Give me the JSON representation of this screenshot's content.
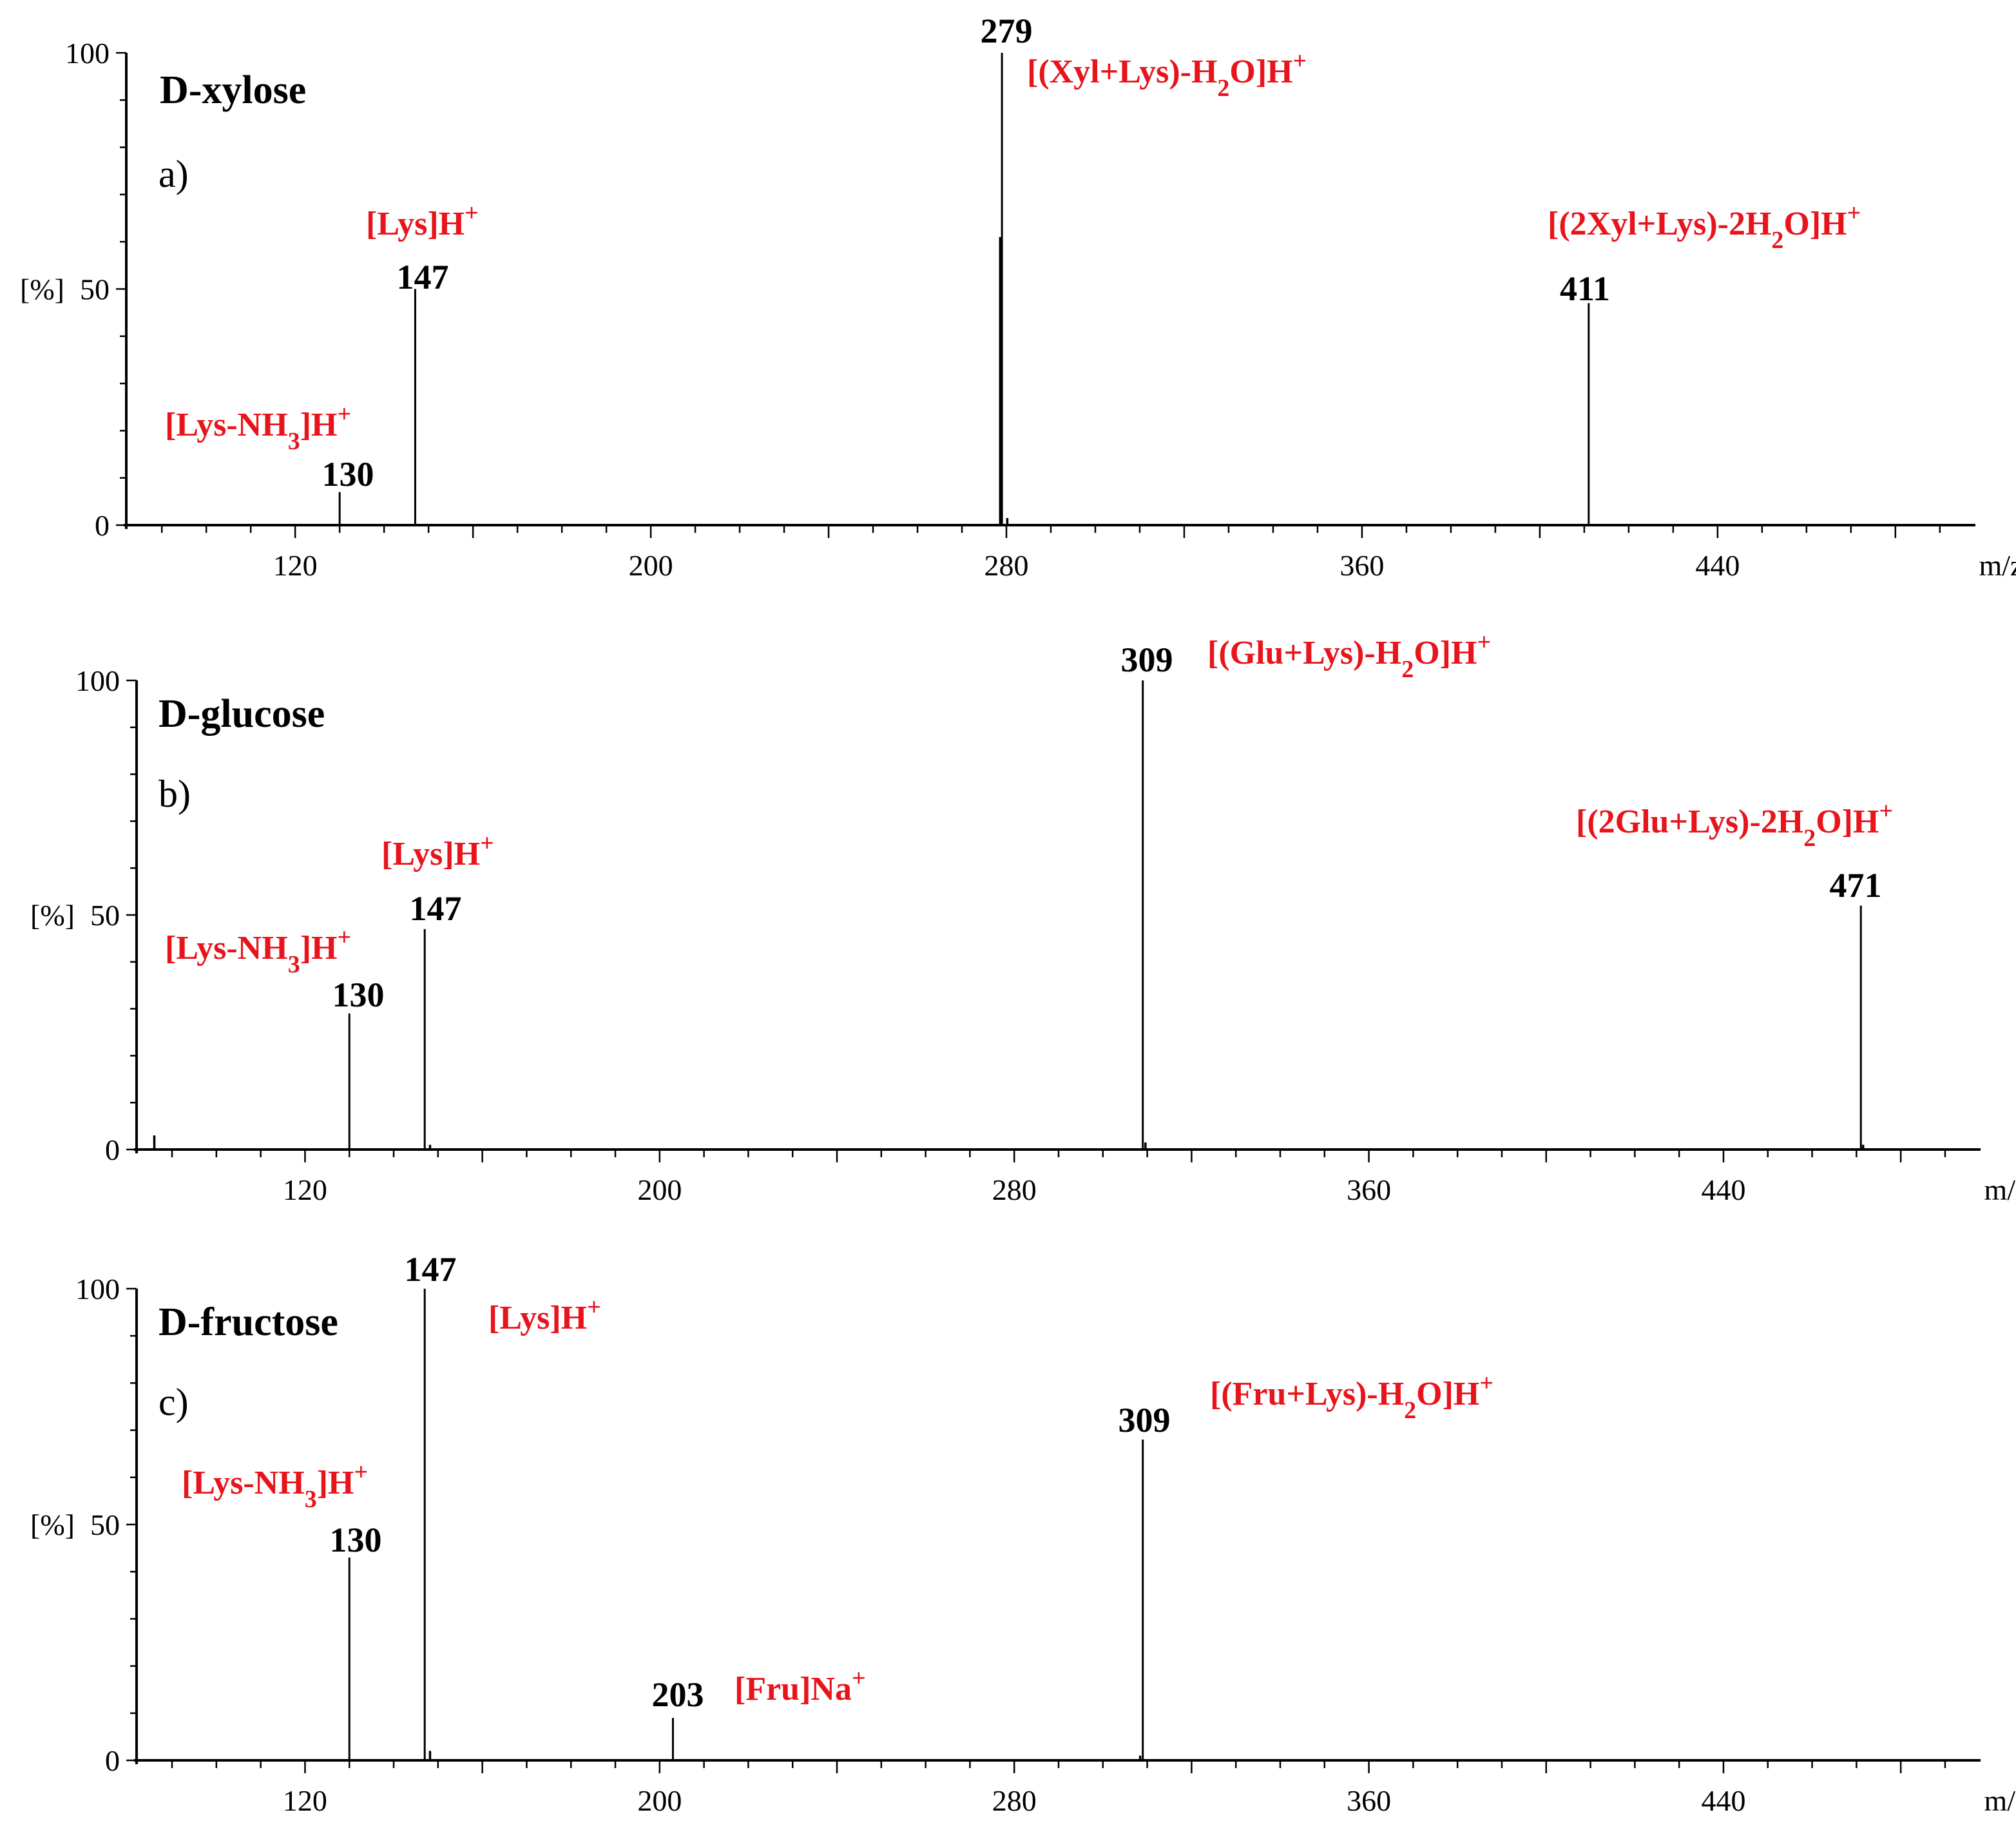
{
  "colors": {
    "axis": "#000000",
    "peak": "#000000",
    "annotation": "#e8141c"
  },
  "chart_data": [
    {
      "type": "bar",
      "title": "D-xylose",
      "panel_label": "a)",
      "xlabel": "m/z",
      "ylabel": "[%]",
      "xlim": [
        82,
        498
      ],
      "ylim": [
        0,
        100
      ],
      "xticks": [
        120,
        200,
        280,
        360,
        440
      ],
      "yticks": [
        0,
        50,
        100
      ],
      "peaks": [
        {
          "mz": 130,
          "intensity": 7,
          "label": "130",
          "ion": "[Lys-NH3]H+"
        },
        {
          "mz": 147,
          "intensity": 50,
          "label": "147",
          "ion": "[Lys]H+"
        },
        {
          "mz": 279,
          "intensity": 100,
          "label": "279",
          "ion": "[(Xyl+Lys)-H2O]H+"
        },
        {
          "mz": 278.6,
          "intensity": 61
        },
        {
          "mz": 280.2,
          "intensity": 1.5
        },
        {
          "mz": 411,
          "intensity": 47,
          "label": "411",
          "ion": "[(2Xyl+Lys)-2H2O]H+"
        }
      ]
    },
    {
      "type": "bar",
      "title": "D-glucose",
      "panel_label": "b)",
      "xlabel": "m/z",
      "ylabel": "[%]",
      "xlim": [
        82,
        498
      ],
      "ylim": [
        0,
        100
      ],
      "xticks": [
        120,
        200,
        280,
        360,
        440
      ],
      "yticks": [
        0,
        50,
        100
      ],
      "peaks": [
        {
          "mz": 86,
          "intensity": 3
        },
        {
          "mz": 130,
          "intensity": 29,
          "label": "130",
          "ion": "[Lys-NH3]H+"
        },
        {
          "mz": 147,
          "intensity": 47,
          "label": "147",
          "ion": "[Lys]H+"
        },
        {
          "mz": 148.2,
          "intensity": 1
        },
        {
          "mz": 309,
          "intensity": 100,
          "label": "309",
          "ion": "[(Glu+Lys)-H2O]H+"
        },
        {
          "mz": 309.6,
          "intensity": 1.5
        },
        {
          "mz": 471,
          "intensity": 52,
          "label": "471",
          "ion": "[(2Glu+Lys)-2H2O]H+"
        },
        {
          "mz": 471.5,
          "intensity": 1
        }
      ]
    },
    {
      "type": "bar",
      "title": "D-fructose",
      "panel_label": "c)",
      "xlabel": "m/z",
      "ylabel": "[%]",
      "xlim": [
        82,
        498
      ],
      "ylim": [
        0,
        100
      ],
      "xticks": [
        120,
        200,
        280,
        360,
        440
      ],
      "yticks": [
        0,
        50,
        100
      ],
      "peaks": [
        {
          "mz": 130,
          "intensity": 43,
          "label": "130",
          "ion": "[Lys-NH3]H+"
        },
        {
          "mz": 147,
          "intensity": 100,
          "label": "147",
          "ion": "[Lys]H+"
        },
        {
          "mz": 148.2,
          "intensity": 2
        },
        {
          "mz": 203,
          "intensity": 9,
          "label": "203",
          "ion": "[Fru]Na+"
        },
        {
          "mz": 309,
          "intensity": 68,
          "label": "309",
          "ion": "[(Fru+Lys)-H2O]H+"
        },
        {
          "mz": 308.4,
          "intensity": 1
        }
      ]
    }
  ]
}
